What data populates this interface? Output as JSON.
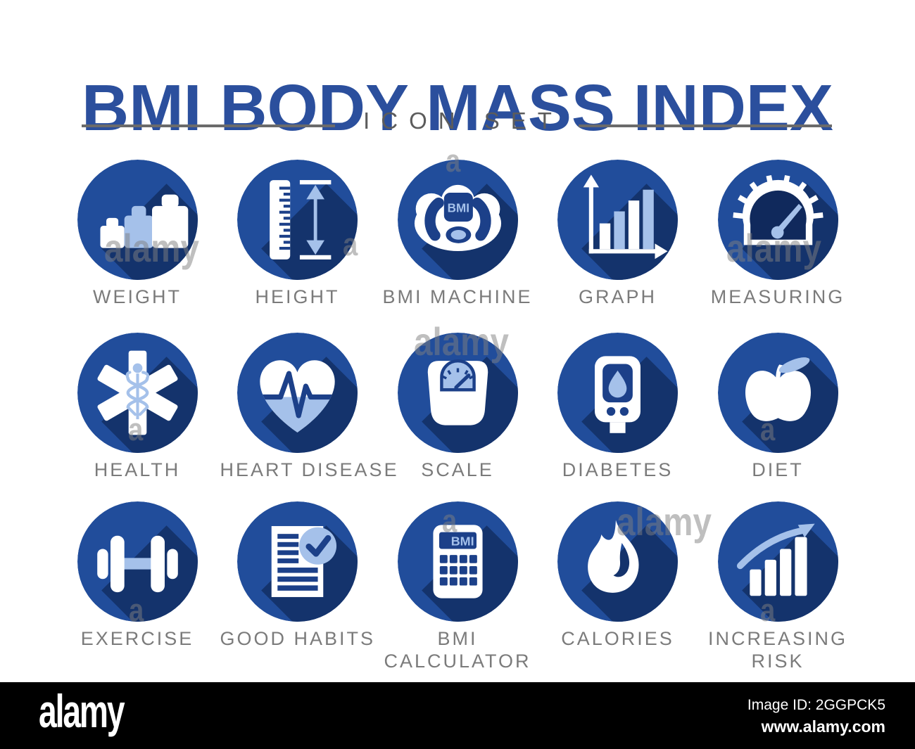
{
  "header": {
    "title": "BMI BODY MASS INDEX",
    "subtitle": "ICON SET",
    "title_color": "#2B4F9D"
  },
  "colors": {
    "circle_blue": "#214D9B",
    "shadow_navy": "#14336C",
    "light_blue": "#A5C1EA",
    "detail_navy": "#1C4089",
    "gauge_navy": "#10295C",
    "label_gray": "#7B7B7B"
  },
  "icons": [
    {
      "name": "weight",
      "label": "WEIGHT"
    },
    {
      "name": "height",
      "label": "HEIGHT"
    },
    {
      "name": "bmi-machine",
      "label": "BMI MACHINE",
      "screen_text": "BMI"
    },
    {
      "name": "graph",
      "label": "GRAPH"
    },
    {
      "name": "measuring",
      "label": "MEASURING"
    },
    {
      "name": "health",
      "label": "HEALTH"
    },
    {
      "name": "heart-disease",
      "label": "HEART DISEASE"
    },
    {
      "name": "scale",
      "label": "SCALE"
    },
    {
      "name": "diabetes",
      "label": "DIABETES"
    },
    {
      "name": "diet",
      "label": "DIET"
    },
    {
      "name": "exercise",
      "label": "EXERCISE"
    },
    {
      "name": "good-habits",
      "label": "GOOD HABITS"
    },
    {
      "name": "bmi-calculator",
      "label": "BMI\nCALCULATOR",
      "screen_text": "BMI"
    },
    {
      "name": "calories",
      "label": "CALORIES"
    },
    {
      "name": "increasing-risk",
      "label": "INCREASING\nRISK"
    }
  ],
  "watermark": {
    "word": "alamy",
    "letter": "a"
  },
  "footer": {
    "logo": "alamy",
    "image_id": "Image ID: 2GGPCK5",
    "url": "www.alamy.com"
  }
}
